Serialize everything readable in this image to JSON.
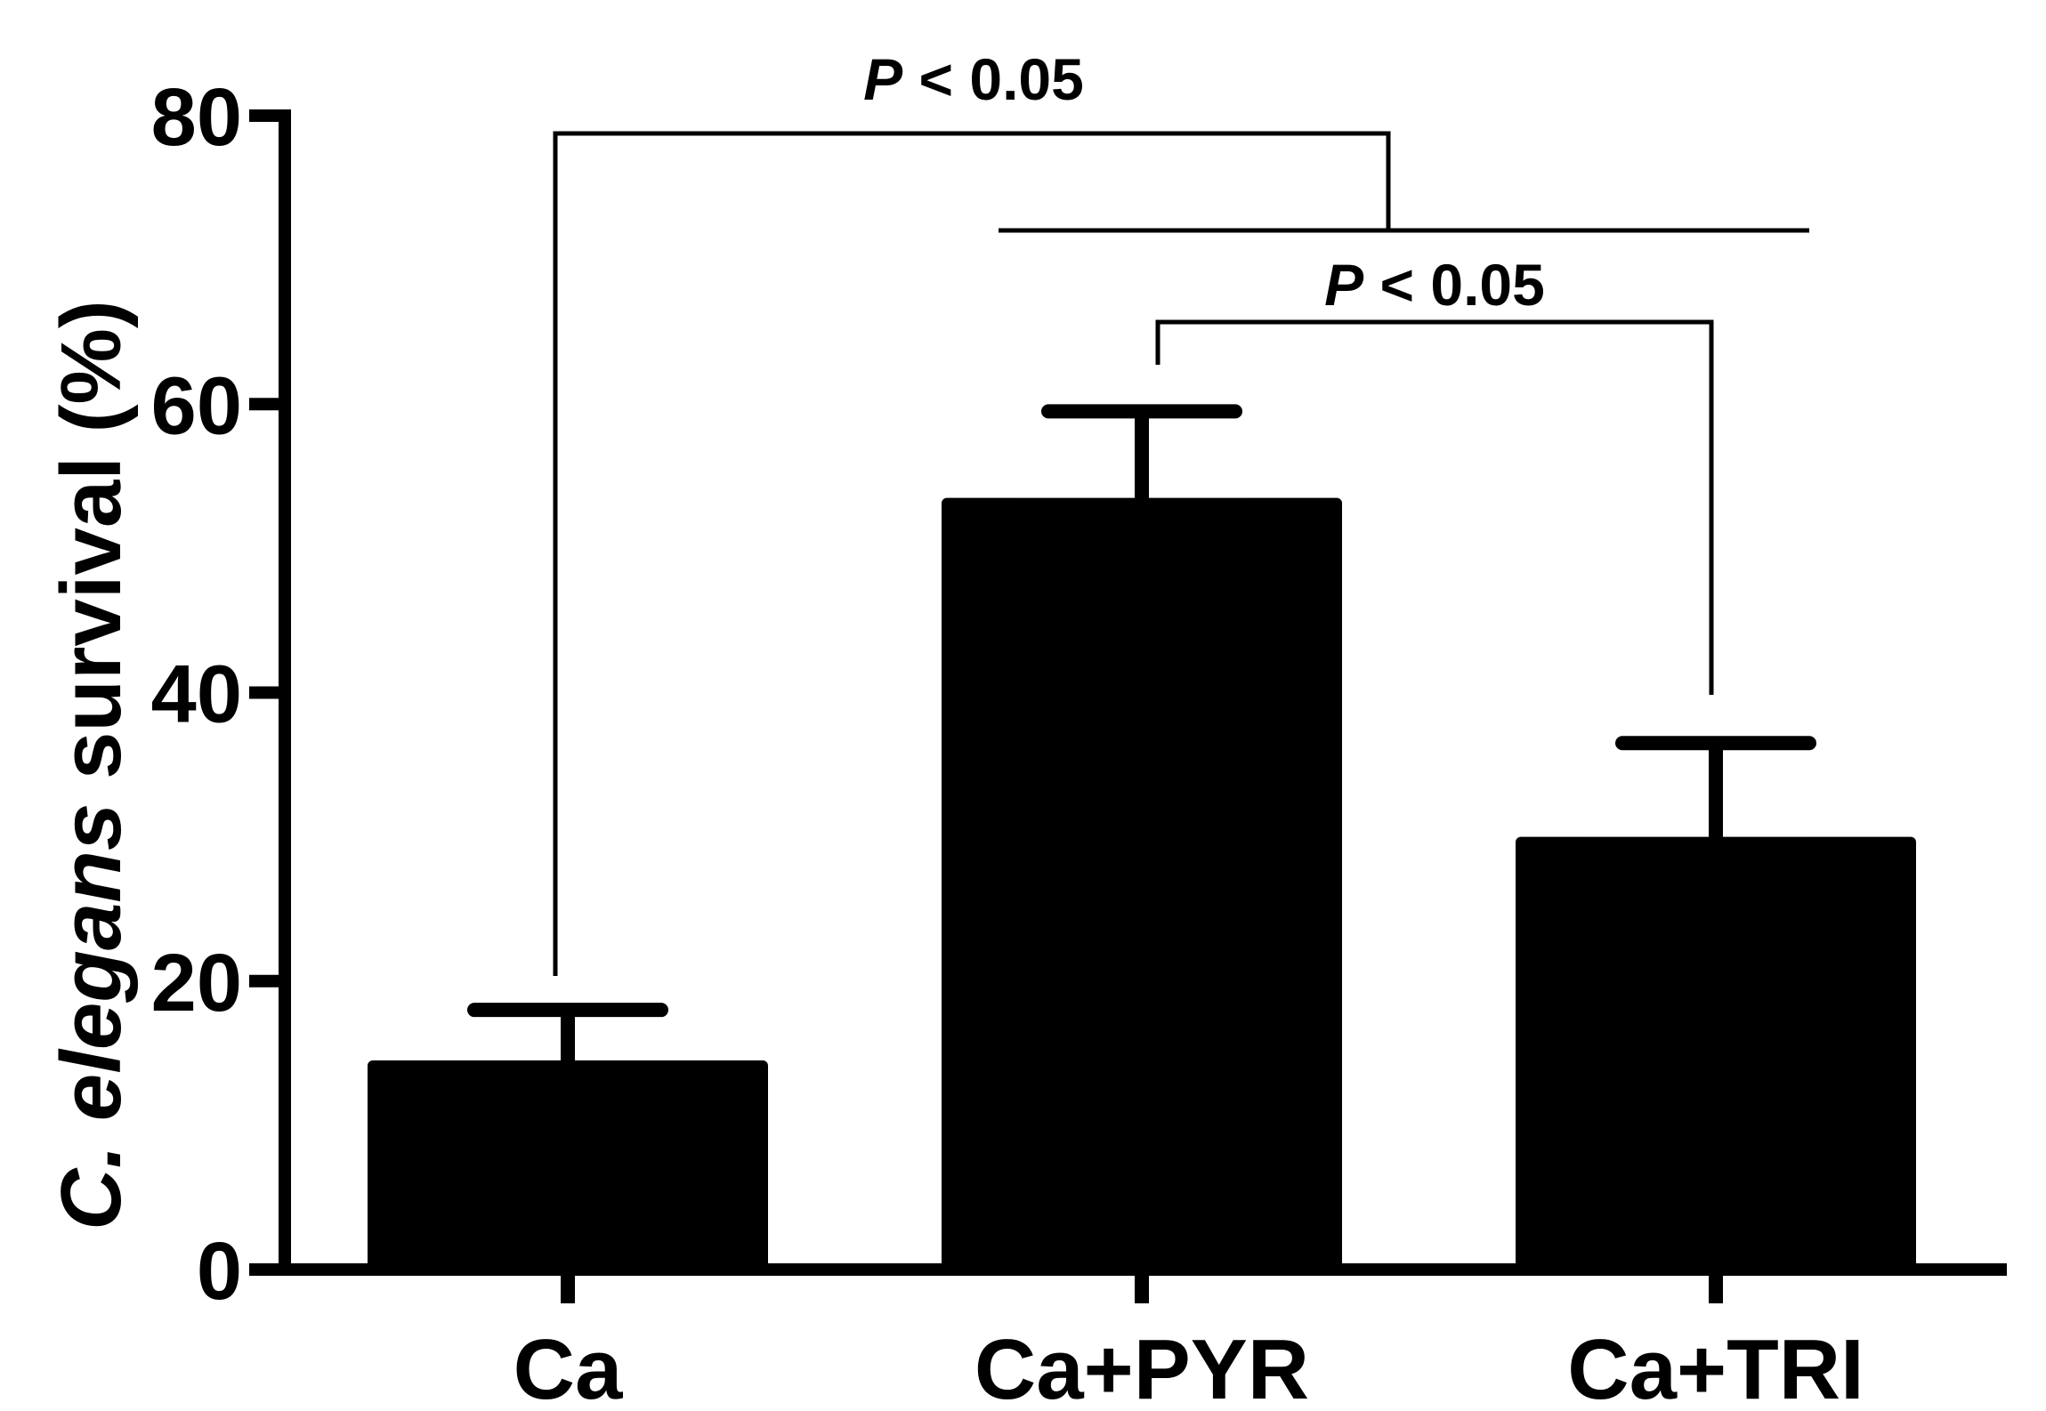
{
  "chart_data": {
    "type": "bar",
    "title": "",
    "xlabel": "",
    "ylabel": {
      "italic_part": "C. elegans",
      "plain_part": " survival (%)"
    },
    "ylim": [
      0,
      80
    ],
    "yticks": [
      0,
      20,
      40,
      60,
      80
    ],
    "ytick_labels": [
      "0",
      "20",
      "40",
      "60",
      "80"
    ],
    "grid": false,
    "legend": "none",
    "categories": [
      "Ca",
      "Ca+PYR",
      "Ca+TRI"
    ],
    "series": [
      {
        "values": [
          14.5,
          53.5,
          30.0
        ],
        "error": [
          3.5,
          6.0,
          6.5
        ],
        "color": "#000000"
      }
    ],
    "annotations": [
      {
        "text_italic": "P",
        "text_plain": " < 0.05",
        "compares": [
          "Ca",
          "Ca+PYR + Ca+TRI"
        ]
      },
      {
        "text_italic": "P",
        "text_plain": " < 0.05",
        "compares": [
          "Ca+PYR",
          "Ca+TRI"
        ]
      }
    ]
  }
}
